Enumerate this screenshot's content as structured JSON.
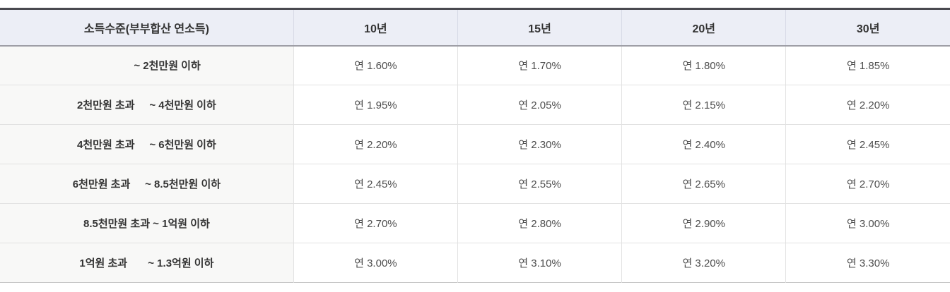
{
  "table": {
    "header": {
      "income_label": "소득수준(부부합산 연소득)",
      "terms": [
        "10년",
        "15년",
        "20년",
        "30년"
      ]
    },
    "rows": [
      {
        "income": "              ~ 2천만원 이하",
        "rates": [
          "연 1.60%",
          "연 1.70%",
          "연 1.80%",
          "연 1.85%"
        ]
      },
      {
        "income": "2천만원 초과     ~ 4천만원 이하",
        "rates": [
          "연 1.95%",
          "연 2.05%",
          "연 2.15%",
          "연 2.20%"
        ]
      },
      {
        "income": "4천만원 초과     ~ 6천만원 이하",
        "rates": [
          "연 2.20%",
          "연 2.30%",
          "연 2.40%",
          "연 2.45%"
        ]
      },
      {
        "income": "6천만원 초과     ~ 8.5천만원 이하",
        "rates": [
          "연 2.45%",
          "연 2.55%",
          "연 2.65%",
          "연 2.70%"
        ]
      },
      {
        "income": "8.5천만원 초과 ~ 1억원 이하",
        "rates": [
          "연 2.70%",
          "연 2.80%",
          "연 2.90%",
          "연 3.00%"
        ]
      },
      {
        "income": "1억원 초과       ~ 1.3억원 이하",
        "rates": [
          "연 3.00%",
          "연 3.10%",
          "연 3.20%",
          "연 3.30%"
        ]
      }
    ]
  },
  "colors": {
    "header_background": "#eceef6",
    "first_column_background": "#f8f8f7",
    "top_border": "#4a4a50",
    "header_underline": "#9e9ea6",
    "grid_line": "#e2e2e2",
    "bottom_border": "#c6c6c6",
    "heading_text": "#333333",
    "value_text": "#4d4d4d"
  }
}
